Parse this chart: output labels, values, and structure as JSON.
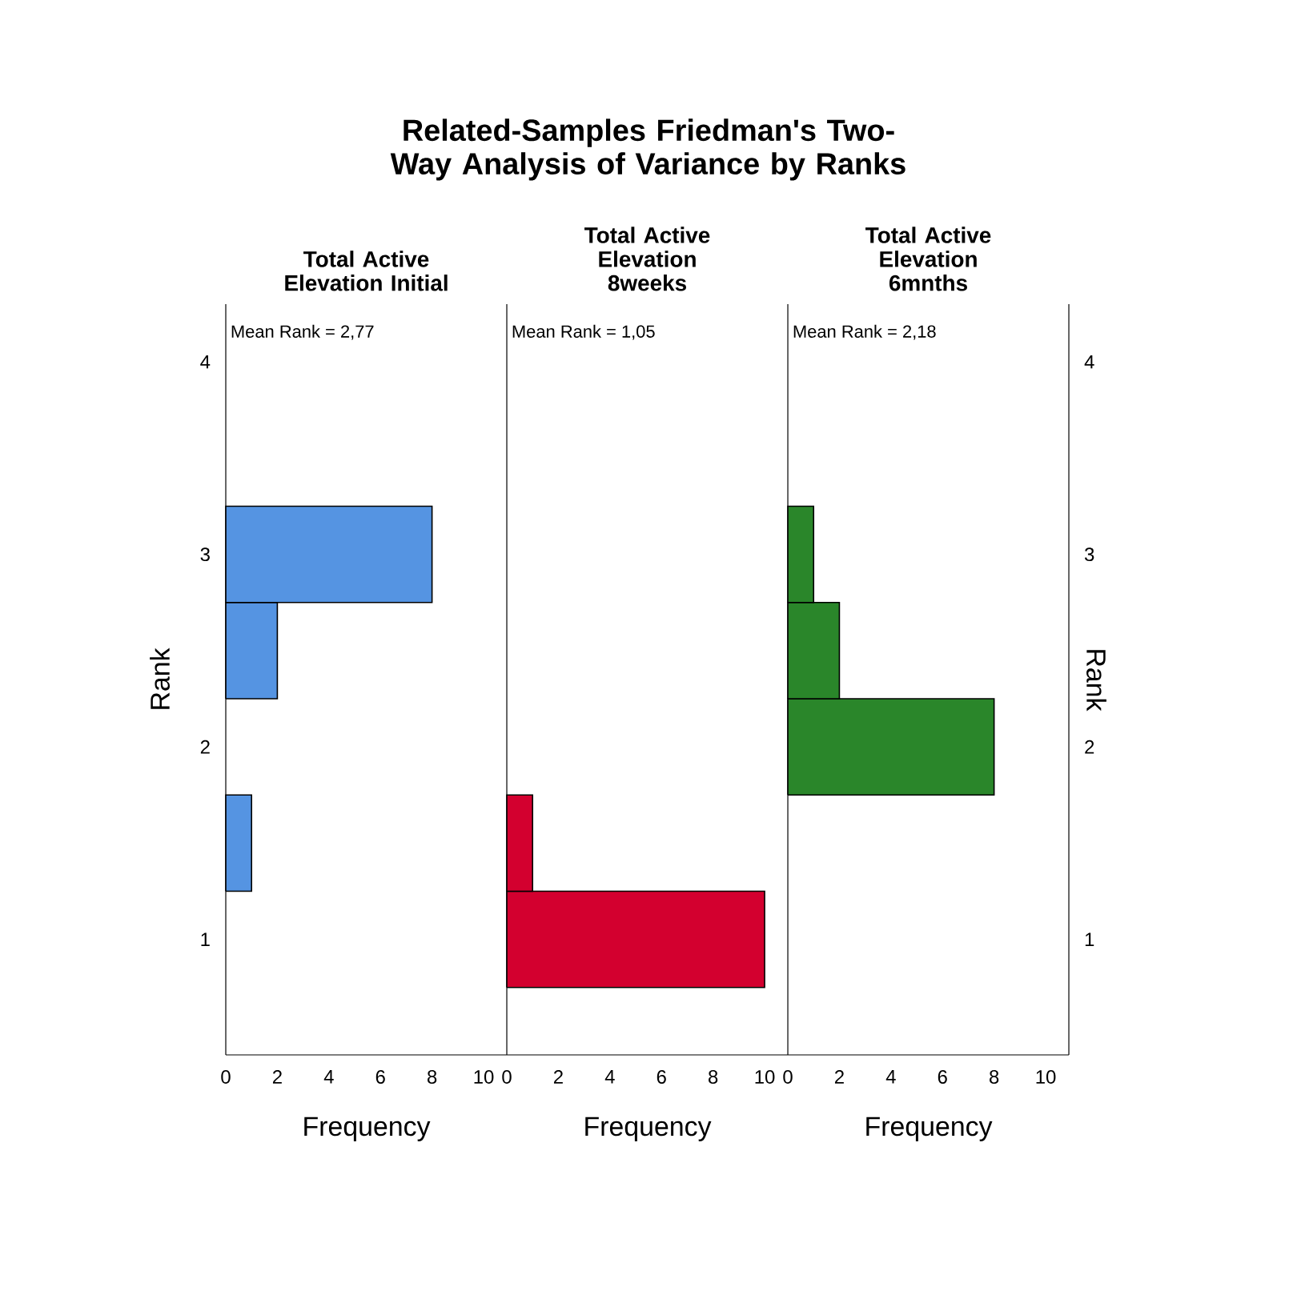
{
  "chart_data": [
    {
      "type": "histogram",
      "orientation": "horizontal",
      "title": "Related-Samples Friedman's Two-Way Analysis of Variance by Ranks",
      "subtitle": "Total Active Elevation Initial",
      "xlabel": "Frequency",
      "ylabel": "Rank",
      "annotations": [
        "Mean Rank = 2,77"
      ],
      "color": "#5594e2",
      "bins": [
        0.75,
        1.25,
        1.75,
        2.25,
        2.75,
        3.25
      ],
      "values": [
        0,
        1,
        0,
        2,
        8
      ],
      "xlim": [
        0,
        10.9
      ],
      "xticks": [
        0,
        2,
        4,
        6,
        8,
        10
      ],
      "ylim": [
        0.4,
        4.3
      ],
      "yticks": [
        1,
        2,
        3,
        4
      ]
    },
    {
      "type": "histogram",
      "orientation": "horizontal",
      "subtitle": "Total Active Elevation 8weeks",
      "xlabel": "Frequency",
      "annotations": [
        "Mean Rank = 1,05"
      ],
      "color": "#d3002f",
      "bins": [
        0.75,
        1.25,
        1.75,
        2.25,
        2.75,
        3.25
      ],
      "values": [
        10,
        1,
        0,
        0,
        0
      ],
      "xlim": [
        0,
        10.9
      ],
      "xticks": [
        0,
        2,
        4,
        6,
        8,
        10
      ],
      "ylim": [
        0.4,
        4.3
      ],
      "yticks": [
        1,
        2,
        3,
        4
      ],
      "tick_labels": "x"
    },
    {
      "type": "histogram",
      "orientation": "horizontal",
      "subtitle": "Total Active Elevation 6mnths",
      "xlabel": "Frequency",
      "ylabel": "Rank",
      "annotations": [
        "Mean Rank = 2,18"
      ],
      "color": "#2a862a",
      "bins": [
        0.75,
        1.25,
        1.75,
        2.25,
        2.75,
        3.25
      ],
      "values": [
        0,
        0,
        8,
        2,
        1
      ],
      "xlim": [
        0,
        10.9
      ],
      "xticks": [
        0,
        2,
        4,
        6,
        8,
        10
      ],
      "ylim": [
        0.4,
        4.3
      ],
      "yticks": [
        1,
        2,
        3,
        4
      ]
    }
  ]
}
